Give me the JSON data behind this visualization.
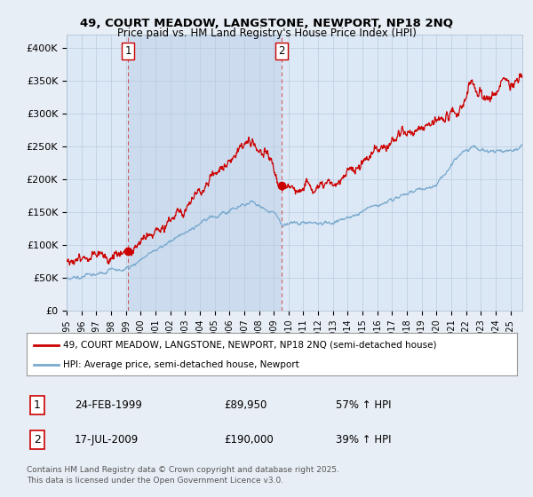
{
  "title_line1": "49, COURT MEADOW, LANGSTONE, NEWPORT, NP18 2NQ",
  "title_line2": "Price paid vs. HM Land Registry's House Price Index (HPI)",
  "background_color": "#e8eef5",
  "plot_bg_color": "#dce8f5",
  "shade_color": "#ccdcee",
  "red_color": "#cc0000",
  "blue_color": "#7aaacf",
  "vline_color": "#cc0000",
  "grid_color": "#b8cce0",
  "ylim": [
    0,
    420000
  ],
  "yticks": [
    0,
    50000,
    100000,
    150000,
    200000,
    250000,
    300000,
    350000,
    400000
  ],
  "ytick_labels": [
    "£0",
    "£50K",
    "£100K",
    "£150K",
    "£200K",
    "£250K",
    "£300K",
    "£350K",
    "£400K"
  ],
  "transaction1_year": 1999.14,
  "transaction1_price": 89950,
  "transaction1_label": "1",
  "transaction1_date": "24-FEB-1999",
  "transaction1_amount": "£89,950",
  "transaction1_hpi": "57% ↑ HPI",
  "transaction2_year": 2009.54,
  "transaction2_price": 190000,
  "transaction2_label": "2",
  "transaction2_date": "17-JUL-2009",
  "transaction2_amount": "£190,000",
  "transaction2_hpi": "39% ↑ HPI",
  "legend_line1": "49, COURT MEADOW, LANGSTONE, NEWPORT, NP18 2NQ (semi-detached house)",
  "legend_line2": "HPI: Average price, semi-detached house, Newport",
  "footer": "Contains HM Land Registry data © Crown copyright and database right 2025.\nThis data is licensed under the Open Government Licence v3.0.",
  "xlim_start": 1995.0,
  "xlim_end": 2025.8
}
